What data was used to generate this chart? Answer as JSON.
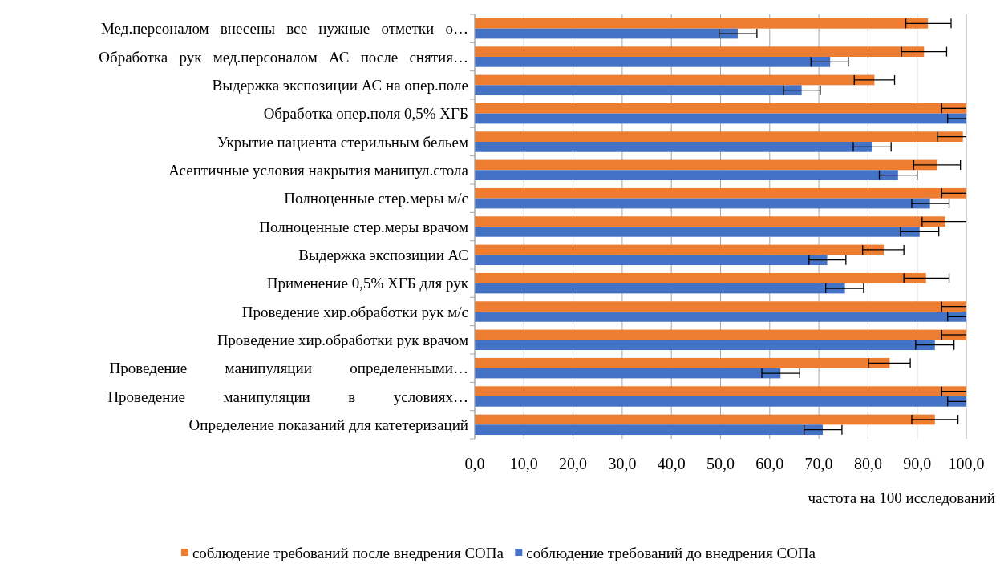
{
  "chart_data": {
    "type": "bar",
    "orientation": "horizontal",
    "xlabel": "частота на 100 исследований",
    "categories": [
      "Мед.персоналом   внесены   все   нужные   отметки   о…",
      "Обработка   рук   мед.персоналом   АС   после   снятия…",
      "Выдержка экспозиции АС на опер.поле",
      "Обработка опер.поля 0,5% ХГБ",
      "Укрытие пациента стерильным бельем",
      "Асептичные условия накрытия манипул.стола",
      "Полноценные стер.меры м/с",
      "Полноценные стер.меры врачом",
      "Выдержка экспозиции АС",
      "Применение 0,5% ХГБ для рук",
      "Проведение хир.обработки рук м/с",
      "Проведение хир.обработки рук врачом",
      "Проведение          манипуляции          определенными…",
      "Проведение          манипуляции          в          условиях…",
      "Определение показаний для катетеризаций"
    ],
    "series": [
      {
        "name": "соблюдение требований после внедрения СОПа",
        "color": "#ed7d31",
        "values": [
          92.2,
          91.4,
          81.3,
          100,
          99.3,
          94.1,
          100,
          95.7,
          83.2,
          91.8,
          100,
          100,
          84.4,
          100,
          93.6
        ],
        "errors": [
          [
            87.7,
            96.9
          ],
          [
            86.8,
            96.0
          ],
          [
            77.2,
            85.4
          ],
          [
            95.0,
            100
          ],
          [
            94.1,
            100
          ],
          [
            89.3,
            98.8
          ],
          [
            95.0,
            100
          ],
          [
            91.0,
            100
          ],
          [
            78.9,
            87.3
          ],
          [
            87.3,
            96.5
          ],
          [
            95.0,
            100
          ],
          [
            95.0,
            100
          ],
          [
            80.1,
            88.6
          ],
          [
            95.0,
            100
          ],
          [
            88.9,
            98.3
          ]
        ]
      },
      {
        "name": "соблюдение требований до внедрения СОПа",
        "color": "#4472c4",
        "values": [
          53.5,
          72.3,
          66.5,
          100,
          80.9,
          86.1,
          92.6,
          90.5,
          71.7,
          75.3,
          100,
          93.6,
          62.2,
          100,
          70.8
        ],
        "errors": [
          [
            49.7,
            57.4
          ],
          [
            68.4,
            76.0
          ],
          [
            62.8,
            70.3
          ],
          [
            96.2,
            100
          ],
          [
            77.0,
            84.7
          ],
          [
            82.3,
            90.0
          ],
          [
            88.9,
            96.5
          ],
          [
            86.6,
            94.4
          ],
          [
            68.0,
            75.5
          ],
          [
            71.4,
            79.1
          ],
          [
            96.2,
            100
          ],
          [
            89.7,
            97.5
          ],
          [
            58.4,
            66.1
          ],
          [
            96.2,
            100
          ],
          [
            67.0,
            74.7
          ]
        ]
      }
    ],
    "xlim": [
      0,
      100
    ],
    "xticks": [
      {
        "value": 0,
        "label": "0,0"
      },
      {
        "value": 10,
        "label": "10,0"
      },
      {
        "value": 20,
        "label": "20,0"
      },
      {
        "value": 30,
        "label": "30,0"
      },
      {
        "value": 40,
        "label": "40,0"
      },
      {
        "value": 50,
        "label": "50,0"
      },
      {
        "value": 60,
        "label": "60,0"
      },
      {
        "value": 70,
        "label": "70,0"
      },
      {
        "value": 80,
        "label": "80,0"
      },
      {
        "value": 90,
        "label": "90,0"
      },
      {
        "value": 100,
        "label": "100,0"
      }
    ],
    "grid": "x",
    "legend": "bottom"
  }
}
